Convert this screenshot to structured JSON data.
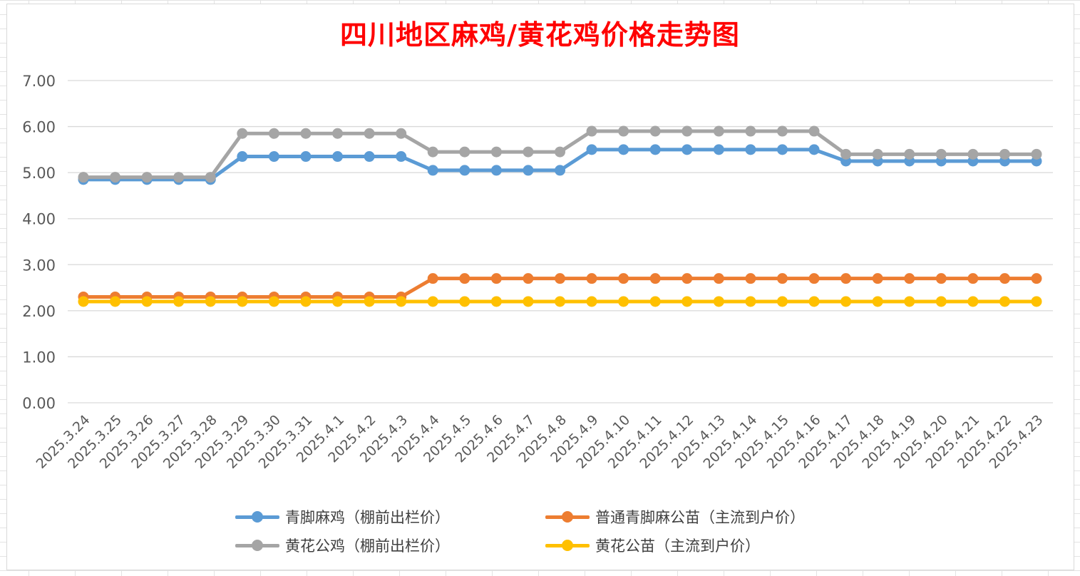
{
  "chart_data": {
    "type": "line",
    "title": "四川地区麻鸡/黄花鸡价格走势图",
    "xlabel": "",
    "ylabel": "",
    "categories": [
      "2025.3.24",
      "2025.3.25",
      "2025.3.26",
      "2025.3.27",
      "2025.3.28",
      "2025.3.29",
      "2025.3.30",
      "2025.3.31",
      "2025.4.1",
      "2025.4.2",
      "2025.4.3",
      "2025.4.4",
      "2025.4.5",
      "2025.4.6",
      "2025.4.7",
      "2025.4.8",
      "2025.4.9",
      "2025.4.10",
      "2025.4.11",
      "2025.4.12",
      "2025.4.13",
      "2025.4.14",
      "2025.4.15",
      "2025.4.16",
      "2025.4.17",
      "2025.4.18",
      "2025.4.19",
      "2025.4.20",
      "2025.4.21",
      "2025.4.22",
      "2025.4.23"
    ],
    "ylim": [
      0,
      7
    ],
    "yticks": [
      "0.00",
      "1.00",
      "2.00",
      "3.00",
      "4.00",
      "5.00",
      "6.00",
      "7.00"
    ],
    "grid": "horizontal",
    "legend_position": "bottom",
    "series": [
      {
        "name": "青脚麻鸡（棚前出栏价）",
        "color": "#5b9bd5",
        "values": [
          4.85,
          4.85,
          4.85,
          4.85,
          4.85,
          5.35,
          5.35,
          5.35,
          5.35,
          5.35,
          5.35,
          5.05,
          5.05,
          5.05,
          5.05,
          5.05,
          5.5,
          5.5,
          5.5,
          5.5,
          5.5,
          5.5,
          5.5,
          5.5,
          5.25,
          5.25,
          5.25,
          5.25,
          5.25,
          5.25,
          5.25
        ]
      },
      {
        "name": "普通青脚麻公苗（主流到户价）",
        "color": "#ed7d31",
        "values": [
          2.3,
          2.3,
          2.3,
          2.3,
          2.3,
          2.3,
          2.3,
          2.3,
          2.3,
          2.3,
          2.3,
          2.7,
          2.7,
          2.7,
          2.7,
          2.7,
          2.7,
          2.7,
          2.7,
          2.7,
          2.7,
          2.7,
          2.7,
          2.7,
          2.7,
          2.7,
          2.7,
          2.7,
          2.7,
          2.7,
          2.7
        ]
      },
      {
        "name": "黄花公鸡（棚前出栏价）",
        "color": "#a5a5a5",
        "values": [
          4.9,
          4.9,
          4.9,
          4.9,
          4.9,
          5.85,
          5.85,
          5.85,
          5.85,
          5.85,
          5.85,
          5.45,
          5.45,
          5.45,
          5.45,
          5.45,
          5.9,
          5.9,
          5.9,
          5.9,
          5.9,
          5.9,
          5.9,
          5.9,
          5.4,
          5.4,
          5.4,
          5.4,
          5.4,
          5.4,
          5.4
        ]
      },
      {
        "name": "黄花公苗（主流到户价）",
        "color": "#ffc000",
        "values": [
          2.2,
          2.2,
          2.2,
          2.2,
          2.2,
          2.2,
          2.2,
          2.2,
          2.2,
          2.2,
          2.2,
          2.2,
          2.2,
          2.2,
          2.2,
          2.2,
          2.2,
          2.2,
          2.2,
          2.2,
          2.2,
          2.2,
          2.2,
          2.2,
          2.2,
          2.2,
          2.2,
          2.2,
          2.2,
          2.2,
          2.2
        ]
      }
    ]
  }
}
